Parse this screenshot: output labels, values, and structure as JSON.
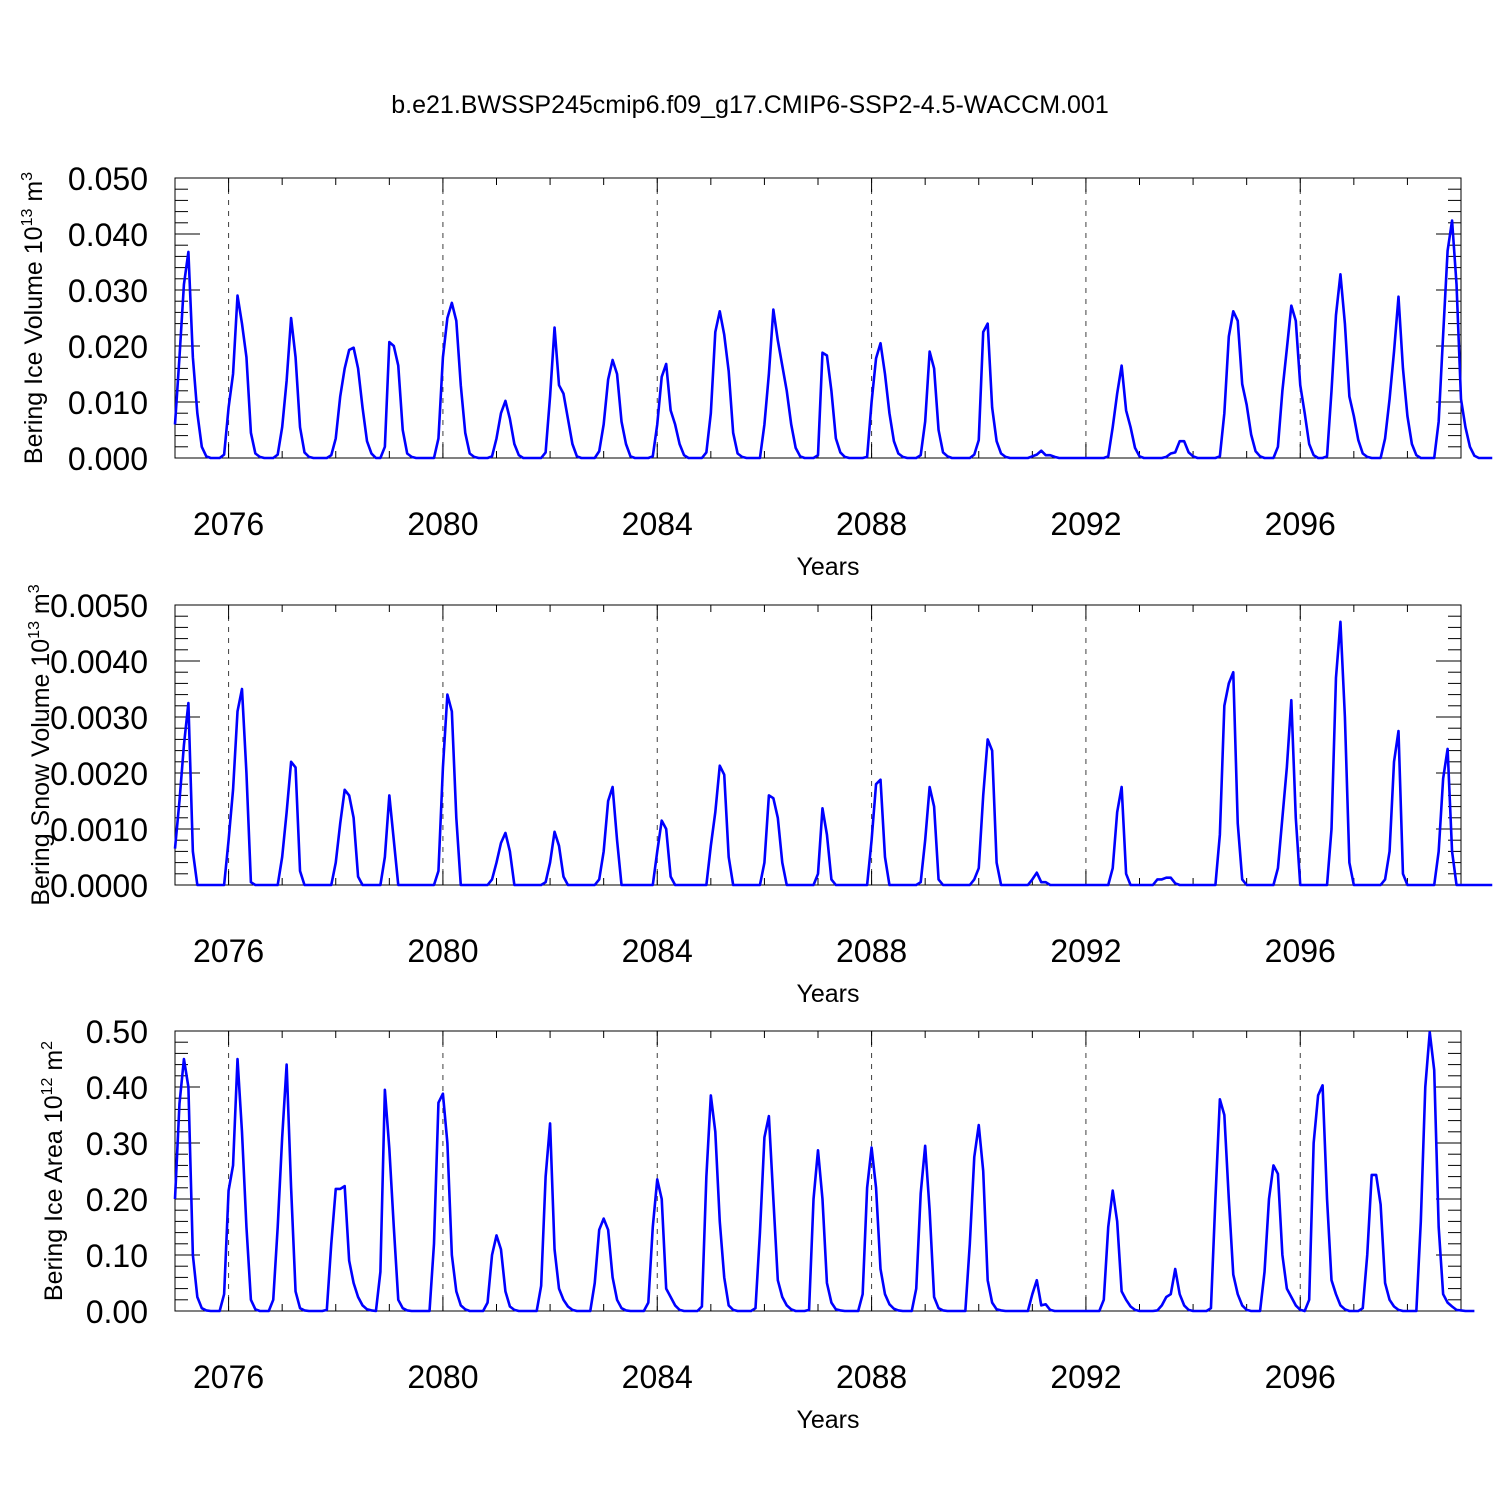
{
  "figure": {
    "title": "b.e21.BWSSP245cmip6.f09_g17.CMIP6-SSP2-4.5-WACCM.001"
  },
  "colors": {
    "series": "#0000ff",
    "axes": "#000000",
    "background": "#ffffff"
  },
  "chart_data": [
    {
      "type": "line",
      "ylabel_main": "Bering Ice Volume 10",
      "ylabel_sup": "13",
      "ylabel_unit": "m",
      "ylabel_unit_sup": "3",
      "xlabel": "Years",
      "xlim": [
        2075.0,
        2099.0
      ],
      "ylim": [
        0,
        0.05
      ],
      "xticks": [
        2076,
        2080,
        2084,
        2088,
        2092,
        2096
      ],
      "xtick_labels": [
        "2076",
        "2080",
        "2084",
        "2088",
        "2092",
        "2096"
      ],
      "yticks": [
        0,
        0.01,
        0.02,
        0.03,
        0.04,
        0.05
      ],
      "ytick_labels": [
        "0.000",
        "0.010",
        "0.020",
        "0.030",
        "0.040",
        "0.050"
      ],
      "x_start": 2075.0,
      "x_step": 0.0833333,
      "values": [
        0.006,
        0.018,
        0.031,
        0.0368,
        0.018,
        0.008,
        0.002,
        0.0003,
        0,
        0,
        0,
        0.0006,
        0.009,
        0.015,
        0.029,
        0.024,
        0.018,
        0.0045,
        0.0008,
        0.0002,
        0,
        0,
        0,
        0.0006,
        0.0055,
        0.0138,
        0.025,
        0.018,
        0.0055,
        0.001,
        0.0002,
        0,
        0,
        0,
        0,
        0.0005,
        0.0035,
        0.011,
        0.016,
        0.0193,
        0.0197,
        0.016,
        0.009,
        0.003,
        0.0008,
        0,
        0,
        0.002,
        0.0207,
        0.02,
        0.0165,
        0.005,
        0.0008,
        0.0002,
        0,
        0,
        0,
        0,
        0,
        0.0035,
        0.018,
        0.025,
        0.0277,
        0.0245,
        0.013,
        0.0045,
        0.0008,
        0.0002,
        0,
        0,
        0,
        0.0003,
        0.0035,
        0.008,
        0.0102,
        0.007,
        0.0025,
        0.0005,
        0,
        0,
        0,
        0,
        0,
        0.001,
        0.011,
        0.0233,
        0.013,
        0.0115,
        0.007,
        0.0025,
        0.0003,
        0,
        0,
        0,
        0,
        0.0012,
        0.006,
        0.014,
        0.0175,
        0.015,
        0.0065,
        0.0025,
        0.0003,
        0,
        0,
        0,
        0,
        0.0003,
        0.006,
        0.0145,
        0.0168,
        0.0085,
        0.006,
        0.0025,
        0.0005,
        0,
        0,
        0,
        0,
        0.001,
        0.008,
        0.0225,
        0.0262,
        0.022,
        0.0155,
        0.0045,
        0.0008,
        0.0002,
        0,
        0,
        0,
        0,
        0.006,
        0.015,
        0.0265,
        0.021,
        0.0165,
        0.012,
        0.006,
        0.0018,
        0.0003,
        0,
        0,
        0,
        0.0005,
        0.0188,
        0.0183,
        0.012,
        0.0035,
        0.001,
        0.0002,
        0,
        0,
        0,
        0,
        0.0002,
        0.01,
        0.0178,
        0.0205,
        0.015,
        0.008,
        0.003,
        0.0008,
        0.0002,
        0,
        0,
        0,
        0.0005,
        0.0065,
        0.019,
        0.016,
        0.005,
        0.001,
        0.0003,
        0,
        0,
        0,
        0,
        0,
        0.0006,
        0.0032,
        0.0225,
        0.024,
        0.009,
        0.003,
        0.0008,
        0.0002,
        0,
        0,
        0,
        0,
        0,
        0.0003,
        0.0006,
        0.0013,
        0.0005,
        0.0005,
        0.0002,
        0,
        0,
        0,
        0,
        0,
        0,
        0,
        0,
        0,
        0,
        0,
        0.0003,
        0.0055,
        0.0115,
        0.0165,
        0.0085,
        0.0055,
        0.0018,
        0.0003,
        0,
        0,
        0,
        0,
        0,
        0.0002,
        0.0008,
        0.001,
        0.003,
        0.003,
        0.001,
        0.0003,
        0,
        0,
        0,
        0,
        0,
        0.0003,
        0.008,
        0.0217,
        0.0262,
        0.0245,
        0.0132,
        0.0095,
        0.0042,
        0.0012,
        0.0003,
        0,
        0,
        0,
        0.002,
        0.012,
        0.0195,
        0.0272,
        0.0245,
        0.013,
        0.008,
        0.0025,
        0.0005,
        0,
        0,
        0.0003,
        0.012,
        0.0255,
        0.0328,
        0.024,
        0.011,
        0.0075,
        0.0032,
        0.0008,
        0.0002,
        0,
        0,
        0,
        0.0035,
        0.0105,
        0.019,
        0.0288,
        0.016,
        0.0075,
        0.0025,
        0.0005,
        0,
        0,
        0,
        0,
        0.0065,
        0.022,
        0.037,
        0.0424,
        0.031,
        0.0105,
        0.0055,
        0.002,
        0.0004,
        0,
        0,
        0,
        0
      ]
    },
    {
      "type": "line",
      "ylabel_main": "Bering Snow Volume 10",
      "ylabel_sup": "13",
      "ylabel_unit": "m",
      "ylabel_unit_sup": "3",
      "xlabel": "Years",
      "xlim": [
        2075.0,
        2099.0
      ],
      "ylim": [
        0,
        0.005
      ],
      "xticks": [
        2076,
        2080,
        2084,
        2088,
        2092,
        2096
      ],
      "xtick_labels": [
        "2076",
        "2080",
        "2084",
        "2088",
        "2092",
        "2096"
      ],
      "yticks": [
        0,
        0.001,
        0.002,
        0.003,
        0.004,
        0.005
      ],
      "ytick_labels": [
        "0.0000",
        "0.0010",
        "0.0020",
        "0.0030",
        "0.0040",
        "0.0050"
      ],
      "x_start": 2075.0,
      "x_step": 0.0833333,
      "values": [
        0.00065,
        0.0015,
        0.0025,
        0.00325,
        0.0006,
        0,
        0,
        0,
        0,
        0,
        0,
        0,
        0.0008,
        0.0017,
        0.0031,
        0.0035,
        0.002,
        5e-05,
        0,
        0,
        0,
        0,
        0,
        0,
        0.0005,
        0.0013,
        0.0022,
        0.0021,
        0.00025,
        0,
        0,
        0,
        0,
        0,
        0,
        0,
        0.0004,
        0.0011,
        0.0017,
        0.0016,
        0.0012,
        0.00015,
        0,
        0,
        0,
        0,
        0,
        0.0005,
        0.0016,
        0.0008,
        0,
        0,
        0,
        0,
        0,
        0,
        0,
        0,
        0,
        0.00025,
        0.0021,
        0.0034,
        0.0031,
        0.0012,
        0,
        0,
        0,
        0,
        0,
        0,
        0,
        0.0001,
        0.0004,
        0.00075,
        0.00093,
        0.0006,
        0,
        0,
        0,
        0,
        0,
        0,
        0,
        5e-05,
        0.0004,
        0.00095,
        0.0007,
        0.00015,
        0,
        0,
        0,
        0,
        0,
        0,
        0,
        0.0001,
        0.0006,
        0.0015,
        0.00175,
        0.0008,
        0,
        0,
        0,
        0,
        0,
        0,
        0,
        0,
        0.0006,
        0.00115,
        0.001,
        0.00015,
        0,
        0,
        0,
        0,
        0,
        0,
        0,
        0,
        0.0007,
        0.0013,
        0.00213,
        0.00197,
        0.0005,
        0,
        0,
        0,
        0,
        0,
        0,
        0,
        0.0004,
        0.0016,
        0.00155,
        0.0012,
        0.0004,
        0,
        0,
        0,
        0,
        0,
        0,
        0,
        0.0002,
        0.00137,
        0.0009,
        0.0001,
        0,
        0,
        0,
        0,
        0,
        0,
        0,
        0,
        0.0008,
        0.0018,
        0.00188,
        0.0005,
        0,
        0,
        0,
        0,
        0,
        0,
        0,
        5e-05,
        0.0008,
        0.00175,
        0.0014,
        0.0001,
        0,
        0,
        0,
        0,
        0,
        0,
        0,
        0.0001,
        0.0003,
        0.0016,
        0.0026,
        0.0024,
        0.0004,
        0,
        0,
        0,
        0,
        0,
        0,
        0,
        0.0001,
        0.00022,
        5e-05,
        5e-05,
        0,
        0,
        0,
        0,
        0,
        0,
        0,
        0,
        0,
        0,
        0,
        0,
        0,
        0,
        0.0003,
        0.0013,
        0.00175,
        0.0002,
        0,
        0,
        0,
        0,
        0,
        0,
        0.0001,
        0.0001,
        0.00013,
        0.00013,
        3e-05,
        0,
        0,
        0,
        0,
        0,
        0,
        0,
        0,
        0,
        0.0009,
        0.0032,
        0.0036,
        0.0038,
        0.0011,
        0.0001,
        0,
        0,
        0,
        0,
        0,
        0,
        0,
        0.0003,
        0.0012,
        0.0021,
        0.0033,
        0.0012,
        0,
        0,
        0,
        0,
        0,
        0,
        0,
        0.001,
        0.0037,
        0.0047,
        0.003,
        0.0004,
        0,
        0,
        0,
        0,
        0,
        0,
        0,
        0.0001,
        0.0006,
        0.0022,
        0.00275,
        0.0002,
        0,
        0,
        0,
        0,
        0,
        0,
        0,
        0.0006,
        0.0019,
        0.00243,
        0.0006,
        0,
        0,
        0,
        0,
        0,
        0,
        0,
        0,
        0
      ]
    },
    {
      "type": "line",
      "ylabel_main": "Bering Ice Area 10",
      "ylabel_sup": "12",
      "ylabel_unit": "m",
      "ylabel_unit_sup": "2",
      "xlabel": "Years",
      "xlim": [
        2075.0,
        2099.0
      ],
      "ylim": [
        0,
        0.5
      ],
      "xticks": [
        2076,
        2080,
        2084,
        2088,
        2092,
        2096
      ],
      "xtick_labels": [
        "2076",
        "2080",
        "2084",
        "2088",
        "2092",
        "2096"
      ],
      "yticks": [
        0,
        0.1,
        0.2,
        0.3,
        0.4,
        0.5
      ],
      "ytick_labels": [
        "0.00",
        "0.10",
        "0.20",
        "0.30",
        "0.40",
        "0.50"
      ],
      "x_start": 2075.0,
      "x_step": 0.0833333,
      "values": [
        0.2,
        0.37,
        0.45,
        0.4,
        0.1,
        0.025,
        0.005,
        0.001,
        0,
        0,
        0,
        0.03,
        0.215,
        0.26,
        0.45,
        0.32,
        0.15,
        0.02,
        0.003,
        0,
        0,
        0,
        0.02,
        0.15,
        0.31,
        0.44,
        0.22,
        0.035,
        0.005,
        0.001,
        0,
        0,
        0,
        0,
        0.002,
        0.12,
        0.218,
        0.218,
        0.223,
        0.09,
        0.05,
        0.025,
        0.01,
        0.003,
        0.001,
        0,
        0.07,
        0.395,
        0.29,
        0.15,
        0.02,
        0.005,
        0.001,
        0,
        0,
        0,
        0,
        0,
        0.12,
        0.372,
        0.388,
        0.3,
        0.1,
        0.035,
        0.01,
        0.003,
        0,
        0,
        0,
        0,
        0.015,
        0.1,
        0.135,
        0.11,
        0.035,
        0.008,
        0.002,
        0,
        0,
        0,
        0,
        0,
        0.045,
        0.24,
        0.335,
        0.11,
        0.04,
        0.02,
        0.008,
        0.002,
        0,
        0,
        0,
        0,
        0.05,
        0.145,
        0.165,
        0.145,
        0.06,
        0.02,
        0.005,
        0.001,
        0,
        0,
        0,
        0,
        0.015,
        0.15,
        0.235,
        0.2,
        0.04,
        0.025,
        0.01,
        0.002,
        0,
        0,
        0,
        0,
        0.008,
        0.24,
        0.385,
        0.32,
        0.16,
        0.06,
        0.01,
        0.002,
        0,
        0,
        0,
        0,
        0.005,
        0.14,
        0.31,
        0.348,
        0.2,
        0.055,
        0.025,
        0.01,
        0.003,
        0,
        0,
        0,
        0.002,
        0.2,
        0.287,
        0.2,
        0.05,
        0.015,
        0.003,
        0.001,
        0,
        0,
        0,
        0,
        0.03,
        0.22,
        0.292,
        0.22,
        0.075,
        0.03,
        0.012,
        0.004,
        0.001,
        0,
        0,
        0,
        0.04,
        0.21,
        0.295,
        0.18,
        0.025,
        0.005,
        0.001,
        0,
        0,
        0,
        0,
        0,
        0.12,
        0.275,
        0.332,
        0.25,
        0.055,
        0.015,
        0.003,
        0.001,
        0,
        0,
        0,
        0,
        0,
        0,
        0.03,
        0.055,
        0.01,
        0.012,
        0.002,
        0,
        0,
        0,
        0,
        0,
        0,
        0,
        0,
        0,
        0,
        0,
        0.02,
        0.15,
        0.215,
        0.16,
        0.035,
        0.02,
        0.008,
        0.002,
        0,
        0,
        0,
        0,
        0.001,
        0.01,
        0.025,
        0.03,
        0.075,
        0.03,
        0.01,
        0.002,
        0,
        0,
        0,
        0,
        0.005,
        0.2,
        0.378,
        0.35,
        0.2,
        0.065,
        0.03,
        0.01,
        0.002,
        0,
        0,
        0,
        0.07,
        0.2,
        0.26,
        0.245,
        0.1,
        0.04,
        0.025,
        0.01,
        0.002,
        0,
        0.02,
        0.3,
        0.385,
        0.403,
        0.2,
        0.055,
        0.03,
        0.01,
        0.003,
        0,
        0,
        0,
        0.005,
        0.1,
        0.243,
        0.243,
        0.19,
        0.05,
        0.02,
        0.008,
        0.002,
        0,
        0,
        0,
        0,
        0.16,
        0.4,
        0.498,
        0.43,
        0.15,
        0.03,
        0.015,
        0.008,
        0.002,
        0.001,
        0,
        0,
        0
      ]
    }
  ]
}
